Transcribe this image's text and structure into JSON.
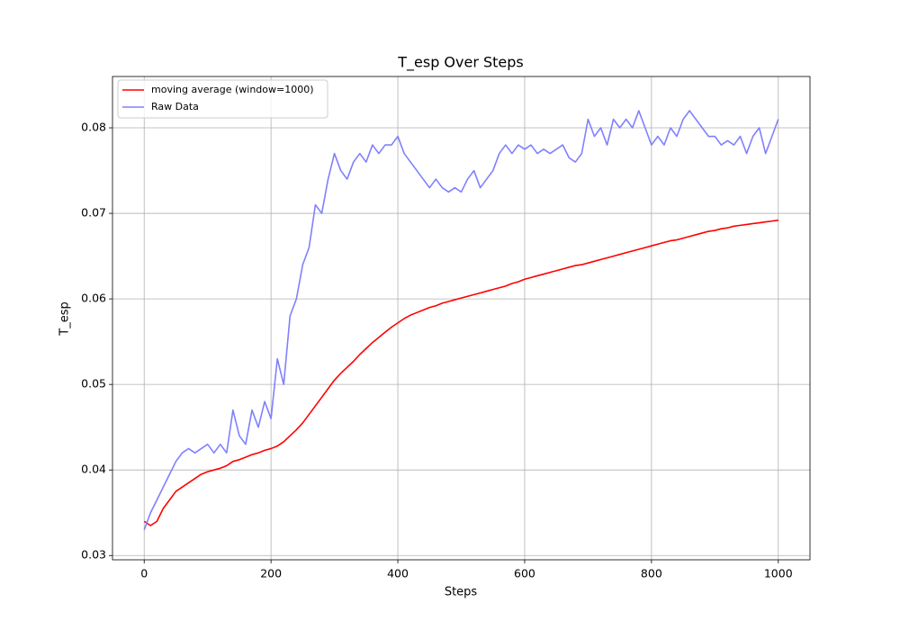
{
  "chart_data": {
    "type": "line",
    "title": "T_esp Over Steps",
    "x_label": "Steps",
    "y_label": "T_esp",
    "x": [
      0,
      10,
      20,
      30,
      40,
      50,
      60,
      70,
      80,
      90,
      100,
      110,
      120,
      130,
      140,
      150,
      160,
      170,
      180,
      190,
      200,
      210,
      220,
      230,
      240,
      250,
      260,
      270,
      280,
      290,
      300,
      310,
      320,
      330,
      340,
      350,
      360,
      370,
      380,
      390,
      400,
      410,
      420,
      430,
      440,
      450,
      460,
      470,
      480,
      490,
      500,
      510,
      520,
      530,
      540,
      550,
      560,
      570,
      580,
      590,
      600,
      610,
      620,
      630,
      640,
      650,
      660,
      670,
      680,
      690,
      700,
      710,
      720,
      730,
      740,
      750,
      760,
      770,
      780,
      790,
      800,
      810,
      820,
      830,
      840,
      850,
      860,
      870,
      880,
      890,
      900,
      910,
      920,
      930,
      940,
      950,
      960,
      970,
      980,
      990,
      1000
    ],
    "series": [
      {
        "name": "moving average (window=1000)",
        "color": "#ff0000",
        "values": [
          0.034,
          0.0335,
          0.034,
          0.0355,
          0.0365,
          0.0375,
          0.038,
          0.0385,
          0.039,
          0.0395,
          0.0398,
          0.04,
          0.0402,
          0.0405,
          0.041,
          0.0412,
          0.0415,
          0.0418,
          0.042,
          0.0423,
          0.0425,
          0.0428,
          0.0433,
          0.044,
          0.0447,
          0.0455,
          0.0465,
          0.0475,
          0.0485,
          0.0495,
          0.0505,
          0.0513,
          0.052,
          0.0527,
          0.0535,
          0.0542,
          0.0549,
          0.0555,
          0.0561,
          0.0567,
          0.0572,
          0.0577,
          0.0581,
          0.0584,
          0.0587,
          0.059,
          0.0592,
          0.0595,
          0.0597,
          0.0599,
          0.0601,
          0.0603,
          0.0605,
          0.0607,
          0.0609,
          0.0611,
          0.0613,
          0.0615,
          0.0618,
          0.062,
          0.0623,
          0.0625,
          0.0627,
          0.0629,
          0.0631,
          0.0633,
          0.0635,
          0.0637,
          0.0639,
          0.064,
          0.0642,
          0.0644,
          0.0646,
          0.0648,
          0.065,
          0.0652,
          0.0654,
          0.0656,
          0.0658,
          0.066,
          0.0662,
          0.0664,
          0.0666,
          0.0668,
          0.0669,
          0.0671,
          0.0673,
          0.0675,
          0.0677,
          0.0679,
          0.068,
          0.0682,
          0.0683,
          0.0685,
          0.0686,
          0.0687,
          0.0688,
          0.0689,
          0.069,
          0.0691,
          0.0692
        ]
      },
      {
        "name": "Raw Data",
        "color": "#8080ff",
        "values": [
          0.033,
          0.035,
          0.0365,
          0.038,
          0.0395,
          0.041,
          0.042,
          0.0425,
          0.042,
          0.0425,
          0.043,
          0.042,
          0.043,
          0.042,
          0.047,
          0.044,
          0.043,
          0.047,
          0.045,
          0.048,
          0.046,
          0.053,
          0.05,
          0.058,
          0.06,
          0.064,
          0.066,
          0.071,
          0.07,
          0.074,
          0.077,
          0.075,
          0.074,
          0.076,
          0.077,
          0.076,
          0.078,
          0.077,
          0.078,
          0.078,
          0.079,
          0.077,
          0.076,
          0.075,
          0.074,
          0.073,
          0.074,
          0.073,
          0.0725,
          0.073,
          0.0725,
          0.074,
          0.075,
          0.073,
          0.074,
          0.075,
          0.077,
          0.078,
          0.077,
          0.078,
          0.0775,
          0.078,
          0.077,
          0.0775,
          0.077,
          0.0775,
          0.078,
          0.0765,
          0.076,
          0.077,
          0.081,
          0.079,
          0.08,
          0.078,
          0.081,
          0.08,
          0.081,
          0.08,
          0.082,
          0.08,
          0.078,
          0.079,
          0.078,
          0.08,
          0.079,
          0.081,
          0.082,
          0.081,
          0.08,
          0.079,
          0.079,
          0.078,
          0.0785,
          0.078,
          0.079,
          0.077,
          0.079,
          0.08,
          0.077,
          0.079,
          0.081
        ]
      }
    ],
    "xlim": [
      -50,
      1050
    ],
    "ylim": [
      0.0295,
      0.086
    ],
    "xticks": [
      0,
      200,
      400,
      600,
      800,
      1000
    ],
    "yticks": [
      0.03,
      0.04,
      0.05,
      0.06,
      0.07,
      0.08
    ],
    "grid": true,
    "legend": "upper-left"
  }
}
